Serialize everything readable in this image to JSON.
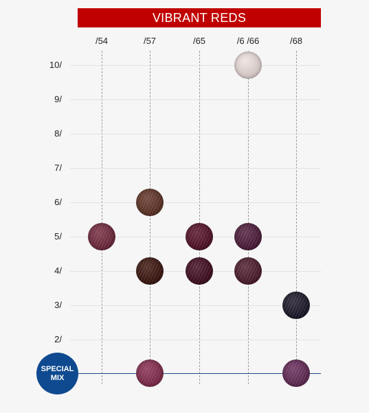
{
  "title": "VIBRANT REDS",
  "columns": [
    "/54",
    "/57",
    "/65",
    "/6 /66",
    "/68"
  ],
  "rows": [
    "10/",
    "9/",
    "8/",
    "7/",
    "6/",
    "5/",
    "4/",
    "3/",
    "2/"
  ],
  "special_mix": {
    "line1": "SPECIAL",
    "line2": "MIX"
  },
  "colors": {
    "banner": "#c00000",
    "special_mix": "#0f4a90",
    "base_line": "#1b4a84"
  },
  "swatches": [
    {
      "column": "/6 /66",
      "row": "10/",
      "color": "#d4c8c6"
    },
    {
      "column": "/57",
      "row": "6/",
      "color": "#5a3227"
    },
    {
      "column": "/54",
      "row": "5/",
      "color": "#6a2a3c"
    },
    {
      "column": "/65",
      "row": "5/",
      "color": "#4f1428"
    },
    {
      "column": "/6 /66",
      "row": "5/",
      "color": "#4a1e38"
    },
    {
      "column": "/57",
      "row": "4/",
      "color": "#3a1812"
    },
    {
      "column": "/65",
      "row": "4/",
      "color": "#3f0f22"
    },
    {
      "column": "/6 /66",
      "row": "4/",
      "color": "#4a1e2c"
    },
    {
      "column": "/68",
      "row": "3/",
      "color": "#1e1a2a"
    },
    {
      "column": "/57",
      "row": "SPECIAL MIX",
      "color": "#7a2c4a"
    },
    {
      "column": "/68",
      "row": "SPECIAL MIX",
      "color": "#5e2a52"
    }
  ]
}
